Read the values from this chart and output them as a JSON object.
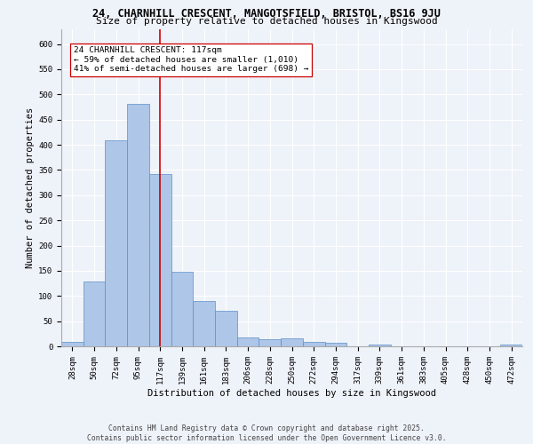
{
  "title_line1": "24, CHARNHILL CRESCENT, MANGOTSFIELD, BRISTOL, BS16 9JU",
  "title_line2": "Size of property relative to detached houses in Kingswood",
  "xlabel": "Distribution of detached houses by size in Kingswood",
  "ylabel": "Number of detached properties",
  "bar_labels": [
    "28sqm",
    "50sqm",
    "72sqm",
    "95sqm",
    "117sqm",
    "139sqm",
    "161sqm",
    "183sqm",
    "206sqm",
    "228sqm",
    "250sqm",
    "272sqm",
    "294sqm",
    "317sqm",
    "339sqm",
    "361sqm",
    "383sqm",
    "405sqm",
    "428sqm",
    "450sqm",
    "472sqm"
  ],
  "bar_values": [
    8,
    128,
    408,
    481,
    342,
    148,
    90,
    70,
    18,
    14,
    15,
    8,
    7,
    0,
    3,
    0,
    0,
    0,
    0,
    0,
    4
  ],
  "bar_color": "#aec6e8",
  "bar_edgecolor": "#5b8fc9",
  "annotation_text": "24 CHARNHILL CRESCENT: 117sqm\n← 59% of detached houses are smaller (1,010)\n41% of semi-detached houses are larger (698) →",
  "vline_color": "#cc0000",
  "vline_x_index": 4,
  "ylim": [
    0,
    630
  ],
  "yticks": [
    0,
    50,
    100,
    150,
    200,
    250,
    300,
    350,
    400,
    450,
    500,
    550,
    600
  ],
  "bg_color": "#eef2f9",
  "plot_bg_color": "#eef2f9",
  "grid_color": "#ffffff",
  "footnote": "Contains HM Land Registry data © Crown copyright and database right 2025.\nContains public sector information licensed under the Open Government Licence v3.0.",
  "title_fontsize": 8.5,
  "subtitle_fontsize": 8.0,
  "axis_label_fontsize": 7.5,
  "tick_fontsize": 6.5,
  "annotation_fontsize": 6.8,
  "footnote_fontsize": 5.8
}
